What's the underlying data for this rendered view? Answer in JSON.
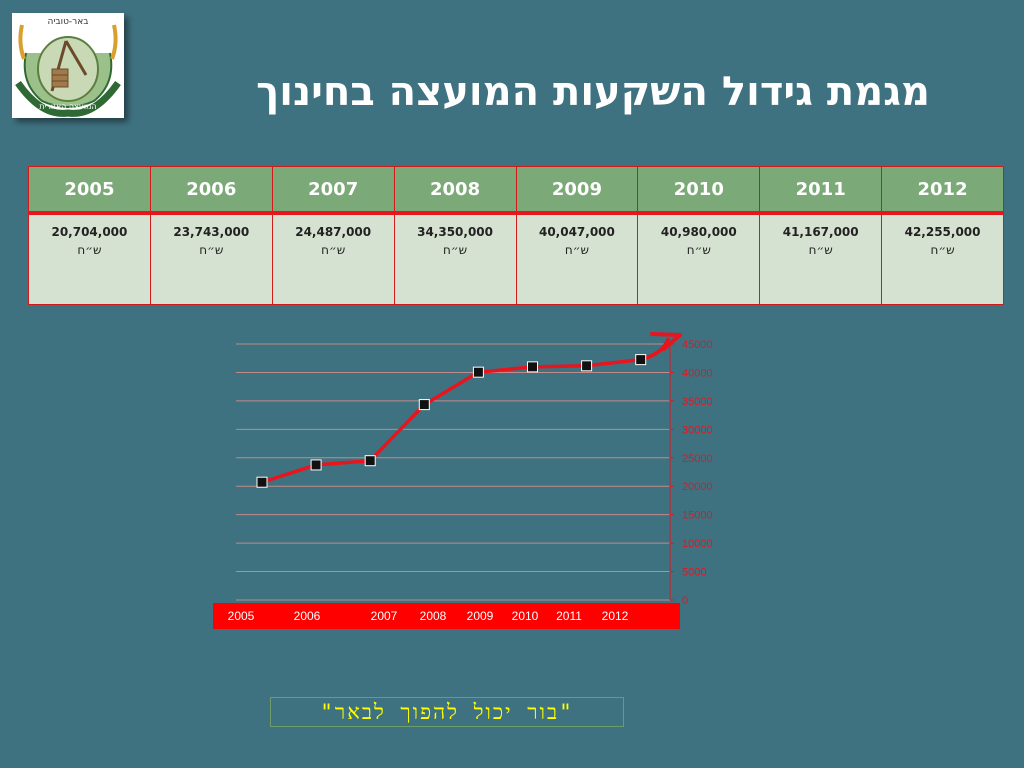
{
  "slide": {
    "title": "מגמת גידול השקעות המועצה בחינוך",
    "quote": "\"בור יכול להפוך לבאר\""
  },
  "logo": {
    "top_text": "באר-טוביה",
    "bottom_text": "המועצה האזורית",
    "icon": "council-emblem-icon"
  },
  "table": {
    "headers": [
      "2005",
      "2006",
      "2007",
      "2008",
      "2009",
      "2010",
      "2011",
      "2012"
    ],
    "amounts": [
      "20,704,000",
      "23,743,000",
      "24,487,000",
      "34,350,000",
      "40,047,000",
      "40,980,000",
      "41,167,000",
      "42,255,000"
    ],
    "currency": "ש״ח"
  },
  "colors": {
    "background": "#3f7280",
    "header_fill": "#7ba977",
    "cell_fill": "#d6e2d1",
    "accent_red": "#e8141e",
    "quote_text": "#ffff00"
  },
  "chart_data": {
    "type": "line",
    "x": [
      "2005",
      "2006",
      "2007",
      "2008",
      "2009",
      "2010",
      "2011",
      "2012"
    ],
    "series": [
      {
        "values": [
          20704,
          23743,
          24487,
          34350,
          40047,
          40980,
          41167,
          42255
        ]
      }
    ],
    "ylim": [
      0,
      45000
    ],
    "yticks": [
      0,
      5000,
      10000,
      15000,
      20000,
      25000,
      30000,
      35000,
      40000,
      45000
    ],
    "y_axis_side": "right",
    "grid": true,
    "line_color": "#e8141e",
    "marker": "black-square"
  }
}
